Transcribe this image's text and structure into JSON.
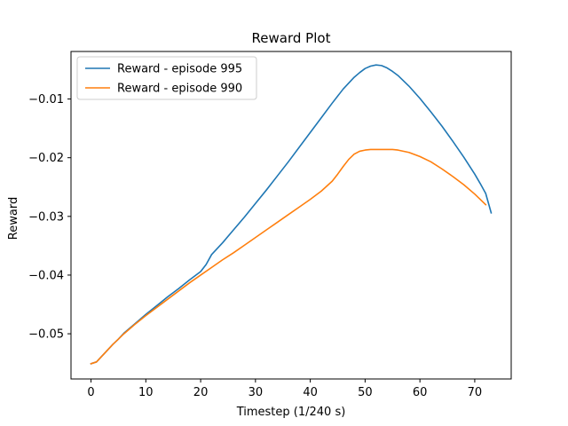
{
  "chart_data": {
    "type": "line",
    "title": "Reward Plot",
    "xlabel": "Timestep (1/240 s)",
    "ylabel": "Reward",
    "xlim": [
      -3.65,
      76.65
    ],
    "ylim": [
      -0.0577,
      -0.0019
    ],
    "xticks": [
      0,
      10,
      20,
      30,
      40,
      50,
      60,
      70
    ],
    "yticks": [
      -0.05,
      -0.04,
      -0.03,
      -0.02,
      -0.01
    ],
    "ytick_labels": [
      "−0.05",
      "−0.04",
      "−0.03",
      "−0.02",
      "−0.01"
    ],
    "grid": false,
    "legend": "top-left",
    "series": [
      {
        "name": "Reward - episode 995",
        "color": "#1f77b4",
        "x": [
          0,
          1,
          2,
          3,
          4,
          5,
          6,
          8,
          10,
          12,
          14,
          16,
          18,
          20,
          21,
          22,
          24,
          26,
          28,
          30,
          32,
          34,
          36,
          38,
          40,
          42,
          44,
          46,
          48,
          49,
          50,
          51,
          52,
          53,
          54,
          55,
          56,
          58,
          60,
          62,
          64,
          66,
          68,
          70,
          71,
          72,
          73
        ],
        "y": [
          -0.0551,
          -0.0548,
          -0.0538,
          -0.0528,
          -0.0518,
          -0.0509,
          -0.0499,
          -0.0483,
          -0.0467,
          -0.0452,
          -0.0437,
          -0.0423,
          -0.0408,
          -0.0394,
          -0.0382,
          -0.0365,
          -0.0345,
          -0.0323,
          -0.0301,
          -0.0278,
          -0.0255,
          -0.0231,
          -0.0207,
          -0.0182,
          -0.0157,
          -0.0132,
          -0.0107,
          -0.0083,
          -0.0063,
          -0.0055,
          -0.0048,
          -0.0044,
          -0.0042,
          -0.0043,
          -0.0047,
          -0.0053,
          -0.006,
          -0.0078,
          -0.0099,
          -0.0122,
          -0.0146,
          -0.0172,
          -0.0199,
          -0.0228,
          -0.0244,
          -0.0261,
          -0.0294
        ]
      },
      {
        "name": "Reward - episode 990",
        "color": "#ff7f0e",
        "x": [
          0,
          1,
          2,
          3,
          4,
          5,
          6,
          8,
          10,
          12,
          14,
          16,
          18,
          20,
          22,
          24,
          26,
          28,
          30,
          32,
          34,
          36,
          38,
          40,
          42,
          44,
          45,
          46,
          47,
          48,
          49,
          50,
          51,
          52,
          53,
          54,
          55,
          56,
          58,
          60,
          62,
          64,
          66,
          68,
          70,
          72
        ],
        "y": [
          -0.0551,
          -0.0548,
          -0.0538,
          -0.0528,
          -0.0518,
          -0.0509,
          -0.05,
          -0.0484,
          -0.0469,
          -0.0455,
          -0.0441,
          -0.0427,
          -0.0413,
          -0.04,
          -0.0387,
          -0.0374,
          -0.0362,
          -0.0349,
          -0.0336,
          -0.0323,
          -0.031,
          -0.0297,
          -0.0284,
          -0.0271,
          -0.0257,
          -0.024,
          -0.0228,
          -0.0215,
          -0.0203,
          -0.0194,
          -0.0189,
          -0.0187,
          -0.0186,
          -0.0186,
          -0.0186,
          -0.0186,
          -0.0186,
          -0.0187,
          -0.0191,
          -0.0198,
          -0.0207,
          -0.0219,
          -0.0232,
          -0.0246,
          -0.0262,
          -0.028
        ]
      }
    ]
  }
}
